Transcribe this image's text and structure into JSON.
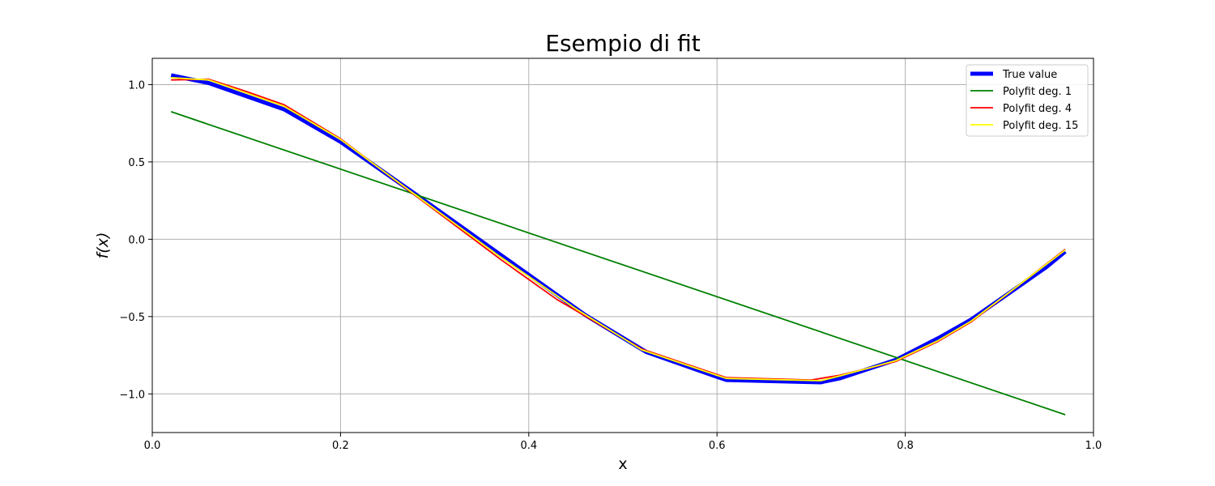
{
  "chart_data": {
    "type": "line",
    "title": "Esempio di fit",
    "xlabel": "x",
    "ylabel": "f(x)",
    "xlim": [
      0.0,
      1.0
    ],
    "ylim": [
      -1.25,
      1.17
    ],
    "grid": true,
    "legend_position": "top-right",
    "x_ticks": [
      0.0,
      0.2,
      0.4,
      0.6,
      0.8,
      1.0
    ],
    "x_tick_labels": [
      "0.0",
      "0.2",
      "0.4",
      "0.6",
      "0.8",
      "1.0"
    ],
    "y_ticks": [
      1.0,
      0.5,
      0.0,
      -0.5,
      -1.0
    ],
    "y_tick_labels": [
      "1.0",
      "0.5",
      "0.0",
      "−0.5",
      "−1.0"
    ],
    "series": [
      {
        "name": "True value",
        "color": "#0000ff",
        "style": "thick",
        "points": [
          [
            0.02,
            1.06
          ],
          [
            0.06,
            1.01
          ],
          [
            0.14,
            0.84
          ],
          [
            0.2,
            0.63
          ],
          [
            0.28,
            0.29
          ],
          [
            0.37,
            -0.1
          ],
          [
            0.46,
            -0.49
          ],
          [
            0.525,
            -0.73
          ],
          [
            0.6,
            -0.89
          ],
          [
            0.61,
            -0.91
          ],
          [
            0.71,
            -0.925
          ],
          [
            0.73,
            -0.9
          ],
          [
            0.79,
            -0.78
          ],
          [
            0.835,
            -0.64
          ],
          [
            0.87,
            -0.52
          ],
          [
            0.95,
            -0.18
          ],
          [
            0.97,
            -0.08
          ]
        ]
      },
      {
        "name": "Polyfit deg. 1",
        "color": "#008000",
        "style": "normal",
        "points": [
          [
            0.02,
            0.825
          ],
          [
            0.97,
            -1.135
          ]
        ]
      },
      {
        "name": "Polyfit deg. 4",
        "color": "#ff0000",
        "style": "normal",
        "points": [
          [
            0.02,
            1.03
          ],
          [
            0.06,
            1.035
          ],
          [
            0.1,
            0.955
          ],
          [
            0.14,
            0.87
          ],
          [
            0.2,
            0.65
          ],
          [
            0.28,
            0.28
          ],
          [
            0.37,
            -0.13
          ],
          [
            0.43,
            -0.39
          ],
          [
            0.52,
            -0.71
          ],
          [
            0.6,
            -0.875
          ],
          [
            0.61,
            -0.895
          ],
          [
            0.7,
            -0.91
          ],
          [
            0.73,
            -0.88
          ],
          [
            0.79,
            -0.79
          ],
          [
            0.835,
            -0.66
          ],
          [
            0.87,
            -0.535
          ],
          [
            0.97,
            -0.065
          ]
        ]
      },
      {
        "name": "Polyfit deg. 15",
        "color": "#ffff00",
        "style": "normal",
        "points": [
          [
            0.02,
            1.045
          ],
          [
            0.06,
            1.03
          ],
          [
            0.14,
            0.86
          ],
          [
            0.2,
            0.645
          ],
          [
            0.28,
            0.285
          ],
          [
            0.37,
            -0.115
          ],
          [
            0.45,
            -0.45
          ],
          [
            0.52,
            -0.715
          ],
          [
            0.6,
            -0.88
          ],
          [
            0.61,
            -0.9
          ],
          [
            0.71,
            -0.915
          ],
          [
            0.73,
            -0.885
          ],
          [
            0.79,
            -0.785
          ],
          [
            0.835,
            -0.655
          ],
          [
            0.87,
            -0.53
          ],
          [
            0.97,
            -0.07
          ]
        ]
      }
    ]
  }
}
